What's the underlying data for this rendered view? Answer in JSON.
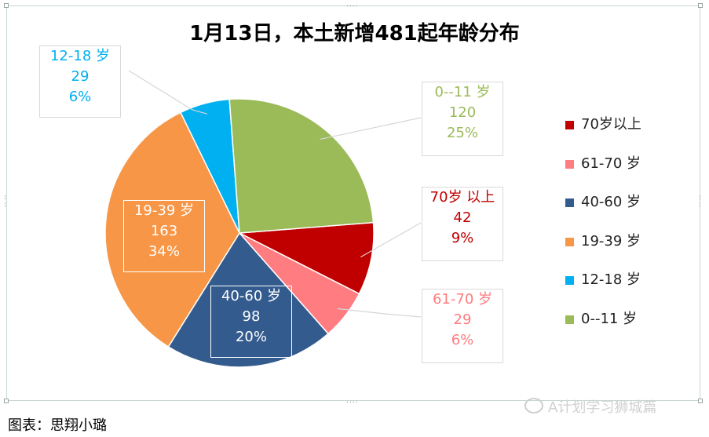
{
  "chart_data": {
    "type": "pie",
    "title": "1月13日，本土新增481起年龄分布",
    "slices": [
      {
        "legend": "70岁以上",
        "label": "70岁 以上",
        "value": 42,
        "percent": "9%",
        "color": "#c00000"
      },
      {
        "legend": "61-70 岁",
        "label": "61-70 岁",
        "value": 29,
        "percent": "6%",
        "color": "#ff7c80"
      },
      {
        "legend": "40-60 岁",
        "label": "40-60 岁",
        "value": 98,
        "percent": "20%",
        "color": "#335b8e"
      },
      {
        "legend": "19-39 岁",
        "label": "19-39 岁",
        "value": 163,
        "percent": "34%",
        "color": "#f79646"
      },
      {
        "legend": "12-18 岁",
        "label": "12-18 岁",
        "value": 29,
        "percent": "6%",
        "color": "#00b0f0"
      },
      {
        "legend": "0--11 岁",
        "label": "0--11 岁",
        "value": 120,
        "percent": "25%",
        "color": "#9bbb59"
      }
    ],
    "legend_position": "right"
  },
  "label_colors": {
    "70": "#c00000",
    "61": "#ff7c80",
    "40": "#ffffff",
    "19": "#ffffff",
    "12": "#00b0f0",
    "0": "#9bbb59"
  },
  "footer": "图表：思翔小璐",
  "watermark": "A计划学习狮城篇"
}
